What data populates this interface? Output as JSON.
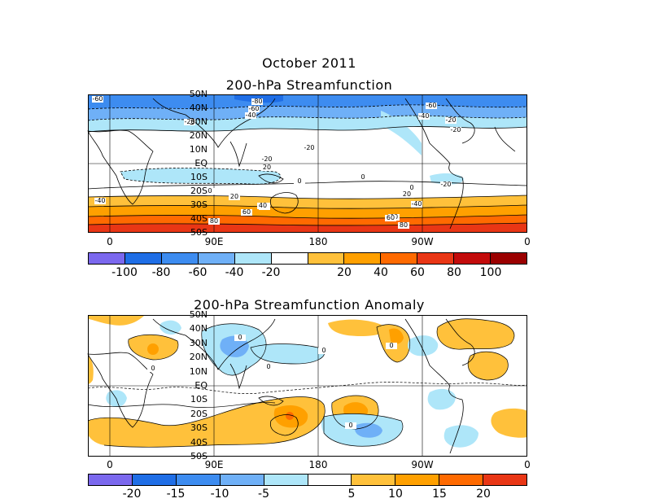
{
  "title_month": "October 2011",
  "panel1": {
    "title": "200-hPa Streamfunction",
    "contour_labels": [
      "-60",
      "-80",
      "-60",
      "-40",
      "-20",
      "-20",
      "-20",
      "-60",
      "-40",
      "-20",
      "20",
      "-20",
      "0",
      "0",
      "-20",
      "0",
      "0",
      "20",
      "20",
      "20",
      "-40",
      "40",
      "-40",
      "40",
      "60",
      "60",
      "80",
      "80",
      "60"
    ],
    "colorbar": {
      "labels": [
        "-100",
        "-80",
        "-60",
        "-40",
        "-20",
        "20",
        "40",
        "60",
        "80",
        "100"
      ],
      "colors": [
        "#7b68ee",
        "#1f6ee6",
        "#3d8cf0",
        "#6fb0f7",
        "#aee6f9",
        "#ffffff",
        "#ffc13b",
        "#ffa000",
        "#ff6a00",
        "#e93615",
        "#c30b0b",
        "#9b0000"
      ]
    }
  },
  "panel2": {
    "title": "200-hPa Streamfunction Anomaly",
    "contour_labels": [
      "0",
      "0",
      "0",
      "0",
      "0",
      "0"
    ],
    "colorbar": {
      "labels": [
        "-20",
        "-15",
        "-10",
        "-5",
        "5",
        "10",
        "15",
        "20"
      ],
      "colors": [
        "#7b68ee",
        "#1f6ee6",
        "#3d8cf0",
        "#6fb0f7",
        "#aee6f9",
        "#ffffff",
        "#ffc13b",
        "#ffa000",
        "#ff6a00",
        "#e93615"
      ]
    }
  },
  "axes": {
    "y_labels": [
      "50N",
      "40N",
      "30N",
      "20N",
      "10N",
      "EQ",
      "10S",
      "20S",
      "30S",
      "40S",
      "50S"
    ],
    "x_labels": [
      "0",
      "90E",
      "180",
      "90W",
      "0"
    ]
  }
}
